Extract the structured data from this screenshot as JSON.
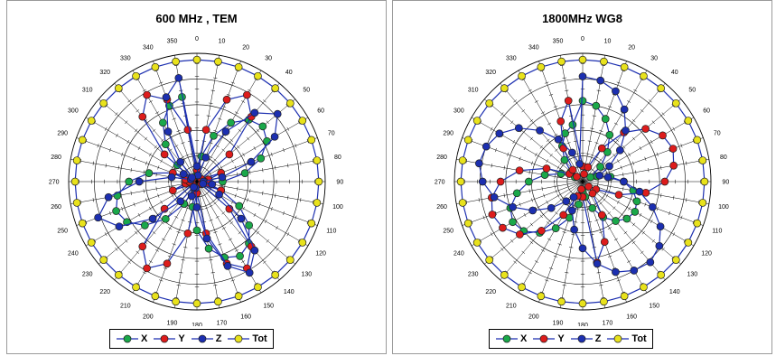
{
  "chart_data": [
    {
      "type": "polar",
      "title": "600 MHz , TEM",
      "angle_unit": "deg",
      "angles": [
        0,
        10,
        20,
        30,
        40,
        50,
        60,
        70,
        80,
        90,
        100,
        110,
        120,
        130,
        140,
        150,
        160,
        170,
        180,
        190,
        200,
        210,
        220,
        230,
        240,
        250,
        260,
        270,
        280,
        290,
        300,
        310,
        320,
        330,
        340,
        350
      ],
      "angle_tick_labels": [
        "0",
        "10",
        "20",
        "30",
        "40",
        "50",
        "60",
        "70",
        "80",
        "90",
        "100",
        "110",
        "120",
        "130",
        "140",
        "150",
        "160",
        "170",
        "180",
        "190",
        "200",
        "210",
        "220",
        "230",
        "240",
        "250",
        "260",
        "270",
        "280",
        "290",
        "300",
        "310",
        "320",
        "330",
        "340",
        "350"
      ],
      "radial_range": [
        0,
        1
      ],
      "grid": true,
      "legend": "bottom",
      "series": [
        {
          "name": "X",
          "color": "#1aa84a",
          "values": [
            0.06,
            0.2,
            0.38,
            0.53,
            0.63,
            0.67,
            0.63,
            0.53,
            0.38,
            0.2,
            0.06,
            0.2,
            0.38,
            0.53,
            0.63,
            0.67,
            0.63,
            0.53,
            0.38,
            0.2,
            0.06,
            0.2,
            0.38,
            0.53,
            0.63,
            0.67,
            0.63,
            0.53,
            0.38,
            0.2,
            0.06,
            0.2,
            0.38,
            0.53,
            0.63,
            0.67
          ]
        },
        {
          "name": "Y",
          "color": "#dd1c1c",
          "values": [
            0.09,
            0.41,
            0.68,
            0.78,
            0.66,
            0.33,
            0.04,
            0.2,
            0.09,
            0.06,
            0.09,
            0.2,
            0.04,
            0.33,
            0.66,
            0.78,
            0.68,
            0.41,
            0.09,
            0.41,
            0.68,
            0.78,
            0.66,
            0.33,
            0.04,
            0.2,
            0.09,
            0.06,
            0.09,
            0.2,
            0.04,
            0.33,
            0.66,
            0.78,
            0.68,
            0.41
          ]
        },
        {
          "name": "Z",
          "color": "#1c2fb0",
          "values": [
            0.12,
            0.05,
            0.2,
            0.45,
            0.7,
            0.82,
            0.7,
            0.45,
            0.2,
            0.05,
            0.12,
            0.05,
            0.2,
            0.45,
            0.7,
            0.82,
            0.7,
            0.45,
            0.2,
            0.05,
            0.12,
            0.05,
            0.2,
            0.45,
            0.7,
            0.82,
            0.7,
            0.45,
            0.2,
            0.05,
            0.12,
            0.05,
            0.2,
            0.45,
            0.7,
            0.82
          ]
        },
        {
          "name": "Tot",
          "color": "#e8e21c",
          "values": [
            0.95,
            0.95,
            0.95,
            0.95,
            0.95,
            0.95,
            0.95,
            0.95,
            0.95,
            0.95,
            0.95,
            0.95,
            0.95,
            0.95,
            0.95,
            0.95,
            0.95,
            0.95,
            0.95,
            0.95,
            0.95,
            0.95,
            0.95,
            0.95,
            0.95,
            0.95,
            0.95,
            0.95,
            0.95,
            0.95,
            0.95,
            0.95,
            0.95,
            0.95,
            0.95,
            0.95
          ]
        }
      ]
    },
    {
      "type": "polar",
      "title": "1800MHz WG8",
      "angle_unit": "deg",
      "angles": [
        0,
        10,
        20,
        30,
        40,
        50,
        60,
        70,
        80,
        90,
        100,
        110,
        120,
        130,
        140,
        150,
        160,
        170,
        180,
        190,
        200,
        210,
        220,
        230,
        240,
        250,
        260,
        270,
        280,
        290,
        300,
        310,
        320,
        330,
        340,
        350
      ],
      "angle_tick_labels": [
        "0",
        "10",
        "20",
        "30",
        "40",
        "50",
        "60",
        "70",
        "80",
        "90",
        "100",
        "110",
        "120",
        "130",
        "140",
        "150",
        "160",
        "170",
        "180",
        "190",
        "200",
        "210",
        "220",
        "230",
        "240",
        "250",
        "260",
        "270",
        "280",
        "290",
        "300",
        "310",
        "320",
        "330",
        "340",
        "350"
      ],
      "radial_range": [
        0,
        1
      ],
      "grid": true,
      "legend": "bottom",
      "series": [
        {
          "name": "X",
          "color": "#1aa84a",
          "values": [
            0.63,
            0.6,
            0.52,
            0.42,
            0.3,
            0.18,
            0.07,
            0.12,
            0.22,
            0.32,
            0.4,
            0.45,
            0.47,
            0.45,
            0.4,
            0.32,
            0.22,
            0.12,
            0.07,
            0.18,
            0.3,
            0.42,
            0.52,
            0.6,
            0.63,
            0.6,
            0.52,
            0.42,
            0.3,
            0.18,
            0.07,
            0.12,
            0.22,
            0.32,
            0.4,
            0.45
          ]
        },
        {
          "name": "Y",
          "color": "#dd1c1c",
          "values": [
            0.12,
            0.06,
            0.12,
            0.3,
            0.5,
            0.64,
            0.72,
            0.75,
            0.72,
            0.64,
            0.5,
            0.3,
            0.12,
            0.06,
            0.12,
            0.3,
            0.5,
            0.64,
            0.12,
            0.06,
            0.12,
            0.3,
            0.5,
            0.64,
            0.72,
            0.75,
            0.72,
            0.64,
            0.5,
            0.3,
            0.12,
            0.06,
            0.12,
            0.3,
            0.5,
            0.64
          ]
        },
        {
          "name": "Z",
          "color": "#1c2fb0",
          "values": [
            0.82,
            0.8,
            0.75,
            0.65,
            0.52,
            0.38,
            0.24,
            0.14,
            0.2,
            0.32,
            0.45,
            0.58,
            0.7,
            0.78,
            0.82,
            0.8,
            0.75,
            0.65,
            0.52,
            0.38,
            0.24,
            0.14,
            0.2,
            0.32,
            0.45,
            0.58,
            0.7,
            0.78,
            0.82,
            0.8,
            0.75,
            0.65,
            0.52,
            0.38,
            0.24,
            0.14
          ]
        },
        {
          "name": "Tot",
          "color": "#e8e21c",
          "values": [
            0.95,
            0.95,
            0.95,
            0.95,
            0.95,
            0.95,
            0.95,
            0.95,
            0.95,
            0.95,
            0.95,
            0.95,
            0.95,
            0.95,
            0.95,
            0.95,
            0.95,
            0.95,
            0.95,
            0.95,
            0.95,
            0.95,
            0.95,
            0.95,
            0.95,
            0.95,
            0.95,
            0.95,
            0.95,
            0.95,
            0.95,
            0.95,
            0.95,
            0.95,
            0.95,
            0.95
          ]
        }
      ]
    }
  ],
  "panels": [
    {
      "title": "600 MHz , TEM",
      "legend": [
        {
          "label": "X"
        },
        {
          "label": "Y"
        },
        {
          "label": "Z"
        },
        {
          "label": "Tot"
        }
      ]
    },
    {
      "title": "1800MHz WG8",
      "legend": [
        {
          "label": "X"
        },
        {
          "label": "Y"
        },
        {
          "label": "Z"
        },
        {
          "label": "Tot"
        }
      ]
    }
  ]
}
